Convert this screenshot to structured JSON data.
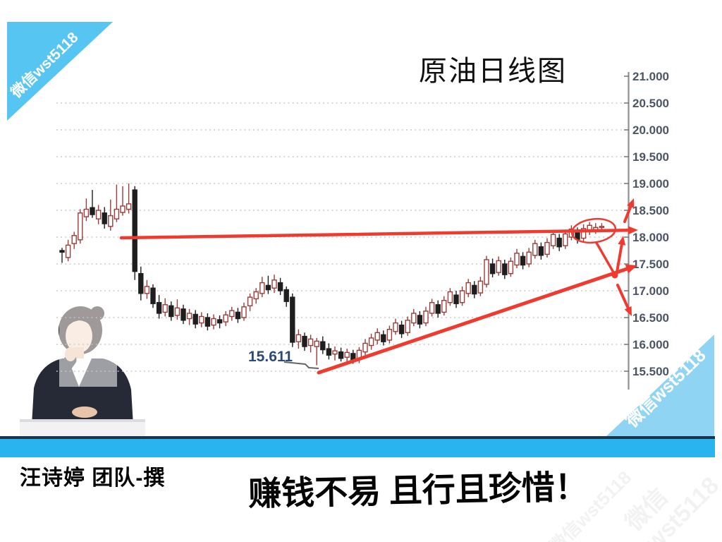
{
  "watermark": {
    "text": "微信wst5118"
  },
  "title": "原油日线图",
  "footer": {
    "author": "汪诗婷 团队-撰",
    "slogan": "赚钱不易 且行且珍惜！"
  },
  "chart_data": {
    "type": "candlestick",
    "title": "原油日线图",
    "xlabel": "",
    "ylabel": "",
    "grid": "horizontal dotted",
    "legend": "none",
    "y_axis": {
      "min": 15.5,
      "max": 21.0,
      "step": 0.5,
      "labels": [
        "21.000",
        "20.500",
        "20.000",
        "19.500",
        "19.000",
        "18.500",
        "18.000",
        "17.500",
        "17.000",
        "16.500",
        "16.000",
        "15.500"
      ]
    },
    "low_annotation": "15.611",
    "colors": {
      "up": "#9c3b38",
      "down": "#1e1e1e",
      "annotation": "#ef3a30",
      "grid": "#c6c6c6",
      "axis": "#8f8f8f",
      "axis_label": "#4b5564",
      "low_label": "#2b4a77"
    },
    "annotations": {
      "resistance_line_price": 18.1,
      "support_trendline": "rising from 15.5 low toward 17.55 at right edge",
      "highlight": "ellipse around last candles near 18.2",
      "arrows": [
        "right at 18.15",
        "up toward 18.9",
        "up from trendline to resistance",
        "down toward 16.6"
      ]
    },
    "candles": [
      [
        17.72,
        17.8,
        17.52,
        17.75,
        "d"
      ],
      [
        17.62,
        17.95,
        17.55,
        17.85,
        "u"
      ],
      [
        17.88,
        18.1,
        17.78,
        18.03,
        "u"
      ],
      [
        17.95,
        18.52,
        17.88,
        18.45,
        "u"
      ],
      [
        18.38,
        18.72,
        18.3,
        18.52,
        "u"
      ],
      [
        18.55,
        18.88,
        18.36,
        18.42,
        "d"
      ],
      [
        18.34,
        18.6,
        18.24,
        18.5,
        "u"
      ],
      [
        18.45,
        18.56,
        18.16,
        18.25,
        "d"
      ],
      [
        18.2,
        18.7,
        18.12,
        18.4,
        "u"
      ],
      [
        18.34,
        18.98,
        18.28,
        18.52,
        "u"
      ],
      [
        18.46,
        18.95,
        18.4,
        18.58,
        "u"
      ],
      [
        18.52,
        19.0,
        18.44,
        18.62,
        "u"
      ],
      [
        18.88,
        18.95,
        17.2,
        17.36,
        "d"
      ],
      [
        17.32,
        17.45,
        16.82,
        16.95,
        "d"
      ],
      [
        16.95,
        17.2,
        16.85,
        17.08,
        "u"
      ],
      [
        17.05,
        17.12,
        16.68,
        16.76,
        "d"
      ],
      [
        16.78,
        16.92,
        16.48,
        16.58,
        "d"
      ],
      [
        16.6,
        16.86,
        16.52,
        16.74,
        "u"
      ],
      [
        16.72,
        16.8,
        16.44,
        16.52,
        "d"
      ],
      [
        16.54,
        16.84,
        16.46,
        16.68,
        "u"
      ],
      [
        16.66,
        16.74,
        16.38,
        16.45,
        "d"
      ],
      [
        16.48,
        16.66,
        16.36,
        16.58,
        "u"
      ],
      [
        16.56,
        16.64,
        16.3,
        16.38,
        "d"
      ],
      [
        16.4,
        16.6,
        16.32,
        16.52,
        "u"
      ],
      [
        16.5,
        16.58,
        16.26,
        16.34,
        "d"
      ],
      [
        16.36,
        16.56,
        16.28,
        16.48,
        "u"
      ],
      [
        16.46,
        16.54,
        16.3,
        16.4,
        "d"
      ],
      [
        16.42,
        16.62,
        16.34,
        16.55,
        "u"
      ],
      [
        16.52,
        16.7,
        16.44,
        16.63,
        "u"
      ],
      [
        16.6,
        16.68,
        16.4,
        16.48,
        "d"
      ],
      [
        16.5,
        16.78,
        16.44,
        16.7,
        "u"
      ],
      [
        16.72,
        16.95,
        16.62,
        16.88,
        "u"
      ],
      [
        16.85,
        17.05,
        16.76,
        16.98,
        "u"
      ],
      [
        16.95,
        17.26,
        16.88,
        17.15,
        "u"
      ],
      [
        17.1,
        17.28,
        16.94,
        17.02,
        "d"
      ],
      [
        17.05,
        17.3,
        16.96,
        17.2,
        "u"
      ],
      [
        17.15,
        17.24,
        16.92,
        17.0,
        "d"
      ],
      [
        17.02,
        17.08,
        16.7,
        16.8,
        "d"
      ],
      [
        16.88,
        16.95,
        15.95,
        16.04,
        "d"
      ],
      [
        16.05,
        16.28,
        15.92,
        16.18,
        "u"
      ],
      [
        16.15,
        16.22,
        15.88,
        15.96,
        "d"
      ],
      [
        15.98,
        16.18,
        15.85,
        16.1,
        "u"
      ],
      [
        15.96,
        16.12,
        15.611,
        16.06,
        "u"
      ],
      [
        16.05,
        16.15,
        15.82,
        15.9,
        "d"
      ],
      [
        15.92,
        16.02,
        15.72,
        15.8,
        "d"
      ],
      [
        15.82,
        15.96,
        15.7,
        15.88,
        "u"
      ],
      [
        15.86,
        15.94,
        15.68,
        15.74,
        "d"
      ],
      [
        15.76,
        15.92,
        15.66,
        15.85,
        "u"
      ],
      [
        15.83,
        15.9,
        15.64,
        15.7,
        "d"
      ],
      [
        15.72,
        15.95,
        15.65,
        15.89,
        "u"
      ],
      [
        15.86,
        16.1,
        15.8,
        16.02,
        "u"
      ],
      [
        15.98,
        16.2,
        15.9,
        16.12,
        "u"
      ],
      [
        16.08,
        16.3,
        16.0,
        16.22,
        "u"
      ],
      [
        16.18,
        16.26,
        15.98,
        16.05,
        "d"
      ],
      [
        16.08,
        16.35,
        16.02,
        16.28,
        "u"
      ],
      [
        16.24,
        16.48,
        16.18,
        16.4,
        "u"
      ],
      [
        16.36,
        16.44,
        16.12,
        16.2,
        "d"
      ],
      [
        16.22,
        16.52,
        16.16,
        16.45,
        "u"
      ],
      [
        16.4,
        16.66,
        16.34,
        16.58,
        "u"
      ],
      [
        16.54,
        16.62,
        16.3,
        16.38,
        "d"
      ],
      [
        16.4,
        16.7,
        16.34,
        16.62,
        "u"
      ],
      [
        16.58,
        16.85,
        16.52,
        16.78,
        "u"
      ],
      [
        16.74,
        16.82,
        16.5,
        16.58,
        "d"
      ],
      [
        16.6,
        16.9,
        16.54,
        16.82,
        "u"
      ],
      [
        16.78,
        17.05,
        16.72,
        16.98,
        "u"
      ],
      [
        16.92,
        17.0,
        16.68,
        16.76,
        "d"
      ],
      [
        16.78,
        17.08,
        16.72,
        17.0,
        "u"
      ],
      [
        16.95,
        17.22,
        16.88,
        17.15,
        "u"
      ],
      [
        17.1,
        17.18,
        16.86,
        16.94,
        "d"
      ],
      [
        16.96,
        17.26,
        16.9,
        17.18,
        "u"
      ],
      [
        17.12,
        17.65,
        17.06,
        17.58,
        "u"
      ],
      [
        17.5,
        17.6,
        17.25,
        17.32,
        "d"
      ],
      [
        17.34,
        17.64,
        17.28,
        17.56,
        "u"
      ],
      [
        17.5,
        17.58,
        17.22,
        17.3,
        "d"
      ],
      [
        17.32,
        17.62,
        17.26,
        17.55,
        "u"
      ],
      [
        17.48,
        17.78,
        17.42,
        17.7,
        "u"
      ],
      [
        17.64,
        17.72,
        17.4,
        17.48,
        "d"
      ],
      [
        17.5,
        17.8,
        17.44,
        17.72,
        "u"
      ],
      [
        17.66,
        17.95,
        17.6,
        17.88,
        "u"
      ],
      [
        17.82,
        17.9,
        17.58,
        17.66,
        "d"
      ],
      [
        17.68,
        17.98,
        17.62,
        17.9,
        "u"
      ],
      [
        17.84,
        18.12,
        17.78,
        18.05,
        "u"
      ],
      [
        17.98,
        18.06,
        17.74,
        17.82,
        "d"
      ],
      [
        17.84,
        18.14,
        17.78,
        18.06,
        "u"
      ],
      [
        18.0,
        18.22,
        17.94,
        18.15,
        "u"
      ],
      [
        18.1,
        18.18,
        17.88,
        17.96,
        "d"
      ],
      [
        17.98,
        18.24,
        17.92,
        18.16,
        "u"
      ],
      [
        18.1,
        18.28,
        18.04,
        18.22,
        "u"
      ],
      [
        18.14,
        18.26,
        18.06,
        18.18,
        "u"
      ],
      [
        18.18,
        18.26,
        18.12,
        18.2,
        "u"
      ]
    ]
  }
}
